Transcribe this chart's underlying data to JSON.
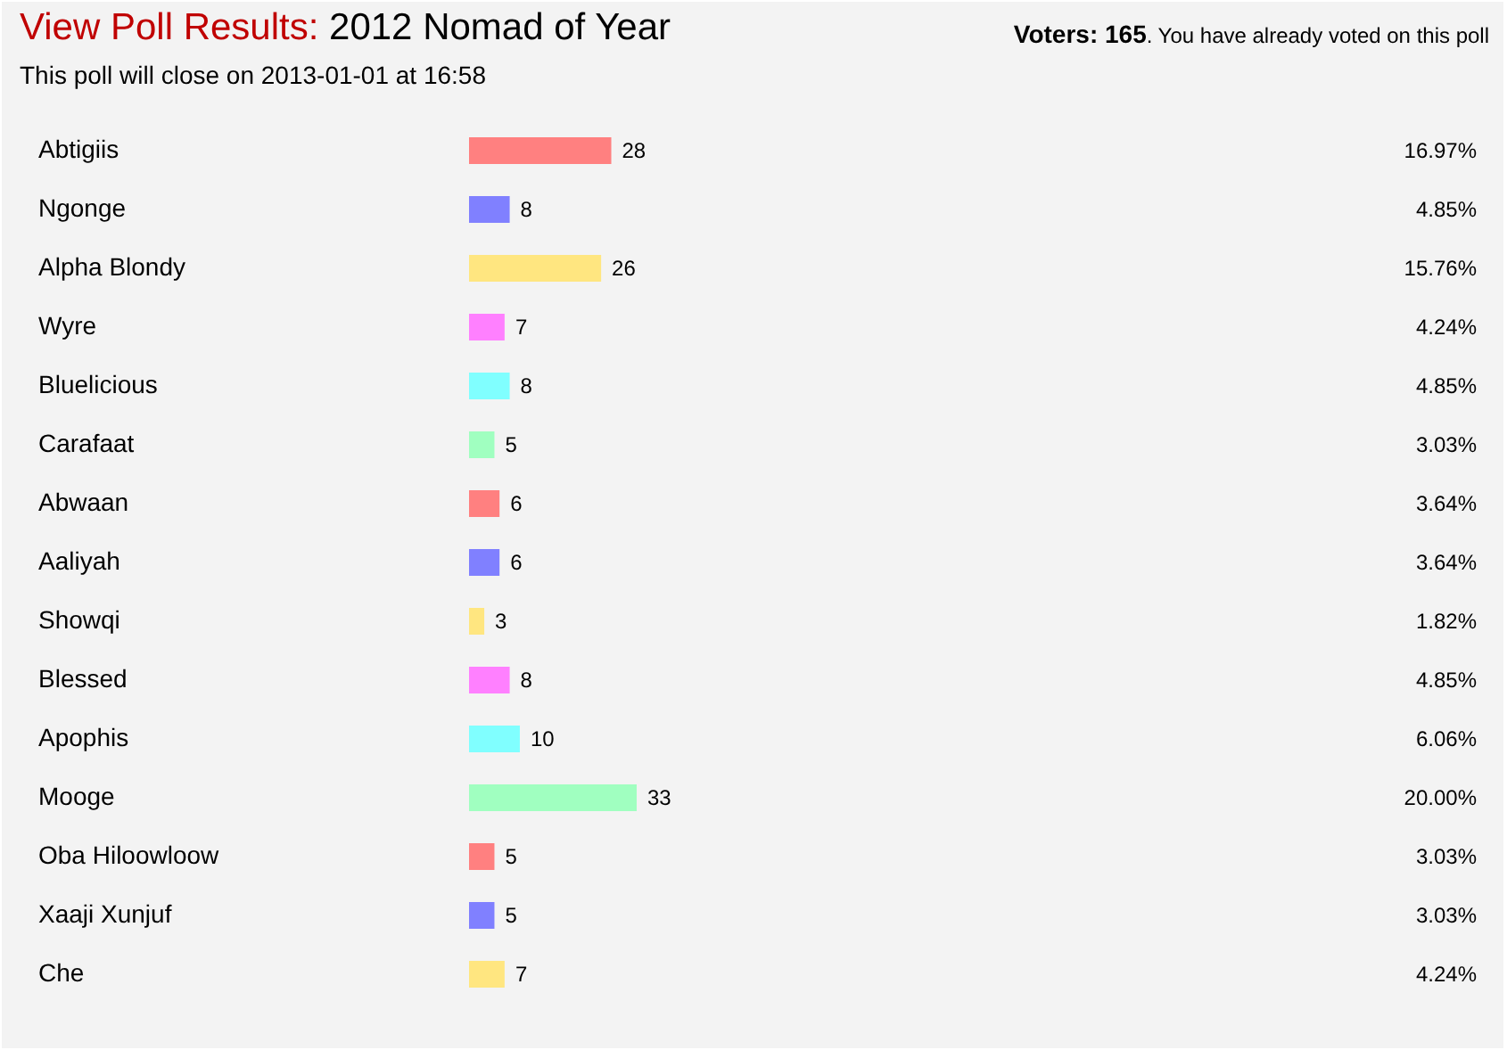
{
  "chart_data": {
    "type": "bar",
    "orientation": "horizontal",
    "title": "View Poll Results: 2012 Nomad of Year",
    "subtitle": "This poll will close on 2013-01-01 at 16:58",
    "categories": [
      "Abtigiis",
      "Ngonge",
      "Alpha Blondy",
      "Wyre",
      "Bluelicious",
      "Carafaat",
      "Abwaan",
      "Aaliyah",
      "Showqi",
      "Blessed",
      "Apophis",
      "Mooge",
      "Oba Hiloowloow",
      "Xaaji Xunjuf",
      "Che"
    ],
    "values": [
      28,
      8,
      26,
      7,
      8,
      5,
      6,
      6,
      3,
      8,
      10,
      33,
      5,
      5,
      7
    ],
    "colors": [
      "#ff8080",
      "#8080ff",
      "#ffe680",
      "#ff80ff",
      "#80ffff",
      "#a0ffc0",
      "#ff8080",
      "#8080ff",
      "#ffe680",
      "#ff80ff",
      "#80ffff",
      "#a0ffc0",
      "#ff8080",
      "#8080ff",
      "#ffe680"
    ],
    "data_labels": true,
    "annotations": [
      "Voters: 165. You have already voted on this poll",
      "16.97%",
      "4.85%",
      "15.76%",
      "4.24%",
      "4.85%",
      "3.03%",
      "3.64%",
      "3.64%",
      "1.82%",
      "4.85%",
      "6.06%",
      "20.00%",
      "3.03%",
      "3.03%",
      "4.24%"
    ]
  }
}
